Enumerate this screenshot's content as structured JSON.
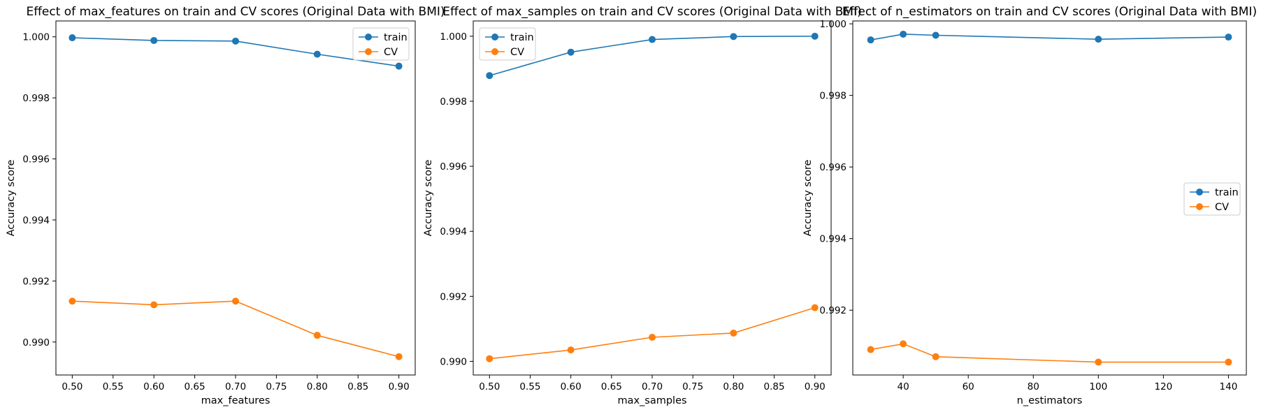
{
  "chart_data": [
    {
      "type": "line",
      "title": "Effect of max_features on train and CV scores (Original Data with BMI)",
      "xlabel": "max_features",
      "ylabel": "Accuracy score",
      "x": [
        0.5,
        0.6,
        0.7,
        0.8,
        0.9
      ],
      "series": [
        {
          "name": "train",
          "color": "#1f77b4",
          "values": [
            0.99997,
            0.99988,
            0.99986,
            0.99943,
            0.99904
          ]
        },
        {
          "name": "CV",
          "color": "#ff7f0e",
          "values": [
            0.99134,
            0.99122,
            0.99134,
            0.99022,
            0.98952
          ]
        }
      ],
      "xlim": [
        0.48,
        0.92
      ],
      "ylim": [
        0.98892,
        1.00052
      ],
      "xticks": [
        0.5,
        0.55,
        0.6,
        0.65,
        0.7,
        0.75,
        0.8,
        0.85,
        0.9
      ],
      "xtick_labels": [
        "0.50",
        "0.55",
        "0.60",
        "0.65",
        "0.70",
        "0.75",
        "0.80",
        "0.85",
        "0.90"
      ],
      "yticks": [
        0.99,
        0.992,
        0.994,
        0.996,
        0.998,
        1.0
      ],
      "ytick_labels": [
        "0.990",
        "0.992",
        "0.994",
        "0.996",
        "0.998",
        "1.000"
      ],
      "legend": "top-right",
      "grid": false
    },
    {
      "type": "line",
      "title": "Effect of max_samples on train and CV scores (Original Data with BMI)",
      "xlabel": "max_samples",
      "ylabel": "Accuracy score",
      "x": [
        0.5,
        0.6,
        0.7,
        0.8,
        0.9
      ],
      "series": [
        {
          "name": "train",
          "color": "#1f77b4",
          "values": [
            0.99879,
            0.99951,
            0.9999,
            0.99999,
            1.0
          ]
        },
        {
          "name": "CV",
          "color": "#ff7f0e",
          "values": [
            0.99008,
            0.99035,
            0.99074,
            0.99087,
            0.99165
          ]
        }
      ],
      "xlim": [
        0.48,
        0.92
      ],
      "ylim": [
        0.98958,
        1.00047
      ],
      "xticks": [
        0.5,
        0.55,
        0.6,
        0.65,
        0.7,
        0.75,
        0.8,
        0.85,
        0.9
      ],
      "xtick_labels": [
        "0.50",
        "0.55",
        "0.60",
        "0.65",
        "0.70",
        "0.75",
        "0.80",
        "0.85",
        "0.90"
      ],
      "yticks": [
        0.99,
        0.992,
        0.994,
        0.996,
        0.998,
        1.0
      ],
      "ytick_labels": [
        "0.990",
        "0.992",
        "0.994",
        "0.996",
        "0.998",
        "1.000"
      ],
      "legend": "top-left",
      "grid": false
    },
    {
      "type": "line",
      "title": "Effect of n_estimators on train and CV scores (Original Data with BMI)",
      "xlabel": "n_estimators",
      "ylabel": "Accuracy score",
      "x": [
        30,
        40,
        50,
        100,
        140
      ],
      "series": [
        {
          "name": "train",
          "color": "#1f77b4",
          "values": [
            0.99955,
            0.99971,
            0.99968,
            0.99957,
            0.99963
          ]
        },
        {
          "name": "CV",
          "color": "#ff7f0e",
          "values": [
            0.9909,
            0.99106,
            0.9907,
            0.99055,
            0.99055
          ]
        }
      ],
      "xlim": [
        24.5,
        145.5
      ],
      "ylim": [
        0.99019,
        1.00008
      ],
      "xticks": [
        40,
        60,
        80,
        100,
        120,
        140
      ],
      "xtick_labels": [
        "40",
        "60",
        "80",
        "100",
        "120",
        "140"
      ],
      "yticks": [
        0.992,
        0.994,
        0.996,
        0.998,
        1.0
      ],
      "ytick_labels": [
        "0.992",
        "0.994",
        "0.996",
        "0.998",
        "1.000"
      ],
      "legend": "center-right",
      "grid": false
    }
  ]
}
